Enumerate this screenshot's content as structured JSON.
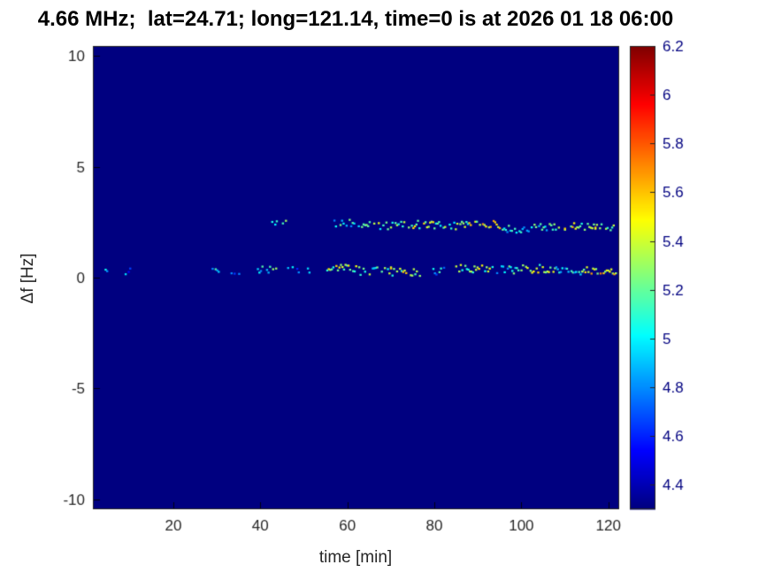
{
  "chart_data": {
    "type": "heatmap",
    "title": "4.66 MHz;  lat=24.71; long=121.14, time=0 is at 2026 01 18 06:00",
    "xlabel": "time [min]",
    "ylabel": "Δf [Hz]",
    "xlim": [
      1.5,
      122.5
    ],
    "ylim": [
      -10.44,
      10.44
    ],
    "xticks": [
      20,
      40,
      60,
      80,
      100,
      120
    ],
    "yticks": [
      10,
      5,
      0,
      -5,
      -10
    ],
    "grid": false,
    "colorbar": {
      "position": "right",
      "colormap": "jet",
      "range": [
        4.3,
        6.2
      ],
      "ticks": [
        4.4,
        4.6,
        4.8,
        5,
        5.2,
        5.4,
        5.6,
        5.8,
        6,
        6.2
      ]
    },
    "background_value": 4.3,
    "background_color": "#000080",
    "traces": [
      {
        "name": "doppler-trace-near-0Hz",
        "segments": [
          {
            "t0": 3,
            "t1": 7,
            "y": 0.3,
            "v": 4.85,
            "d": 0.35
          },
          {
            "t0": 9,
            "t1": 10.5,
            "y": 0.25,
            "v": 4.8,
            "d": 0.3
          },
          {
            "t0": 29,
            "t1": 31,
            "y": 0.3,
            "v": 5.0,
            "d": 0.5
          },
          {
            "t0": 33,
            "t1": 36,
            "y": 0.3,
            "v": 4.9,
            "d": 0.45
          },
          {
            "t0": 38,
            "t1": 44,
            "y": 0.35,
            "v": 5.05,
            "d": 0.55
          },
          {
            "t0": 46,
            "t1": 52,
            "y": 0.3,
            "v": 4.85,
            "d": 0.4
          },
          {
            "t0": 55,
            "t1": 63,
            "y": 0.45,
            "v": 5.3,
            "d": 0.75
          },
          {
            "t0": 63,
            "t1": 70,
            "y": 0.3,
            "v": 5.15,
            "d": 0.7
          },
          {
            "t0": 70,
            "t1": 77,
            "y": 0.25,
            "v": 5.35,
            "d": 0.75
          },
          {
            "t0": 78,
            "t1": 84,
            "y": 0.3,
            "v": 4.9,
            "d": 0.5
          },
          {
            "t0": 85,
            "t1": 93,
            "y": 0.4,
            "v": 5.3,
            "d": 0.8
          },
          {
            "t0": 93,
            "t1": 100,
            "y": 0.35,
            "v": 5.05,
            "d": 0.7
          },
          {
            "t0": 100,
            "t1": 108,
            "y": 0.4,
            "v": 5.35,
            "d": 0.8
          },
          {
            "t0": 108,
            "t1": 114,
            "y": 0.3,
            "v": 4.95,
            "d": 0.65
          },
          {
            "t0": 114,
            "t1": 122,
            "y": 0.3,
            "v": 5.45,
            "d": 0.85
          }
        ]
      },
      {
        "name": "doppler-trace-near-2.3Hz",
        "segments": [
          {
            "t0": 42,
            "t1": 46,
            "y": 2.55,
            "v": 5.1,
            "d": 0.55
          },
          {
            "t0": 57,
            "t1": 63,
            "y": 2.45,
            "v": 5.0,
            "d": 0.6
          },
          {
            "t0": 63,
            "t1": 72,
            "y": 2.35,
            "v": 5.2,
            "d": 0.7
          },
          {
            "t0": 72,
            "t1": 80,
            "y": 2.4,
            "v": 5.3,
            "d": 0.75
          },
          {
            "t0": 80,
            "t1": 88,
            "y": 2.35,
            "v": 5.2,
            "d": 0.7
          },
          {
            "t0": 88,
            "t1": 95,
            "y": 2.4,
            "v": 5.4,
            "d": 0.75
          },
          {
            "t0": 95,
            "t1": 103,
            "y": 2.2,
            "v": 4.95,
            "d": 0.6
          },
          {
            "t0": 103,
            "t1": 110,
            "y": 2.25,
            "v": 5.1,
            "d": 0.65
          },
          {
            "t0": 110,
            "t1": 117,
            "y": 2.3,
            "v": 5.35,
            "d": 0.75
          },
          {
            "t0": 117,
            "t1": 122,
            "y": 2.25,
            "v": 5.2,
            "d": 0.7
          }
        ]
      }
    ]
  }
}
